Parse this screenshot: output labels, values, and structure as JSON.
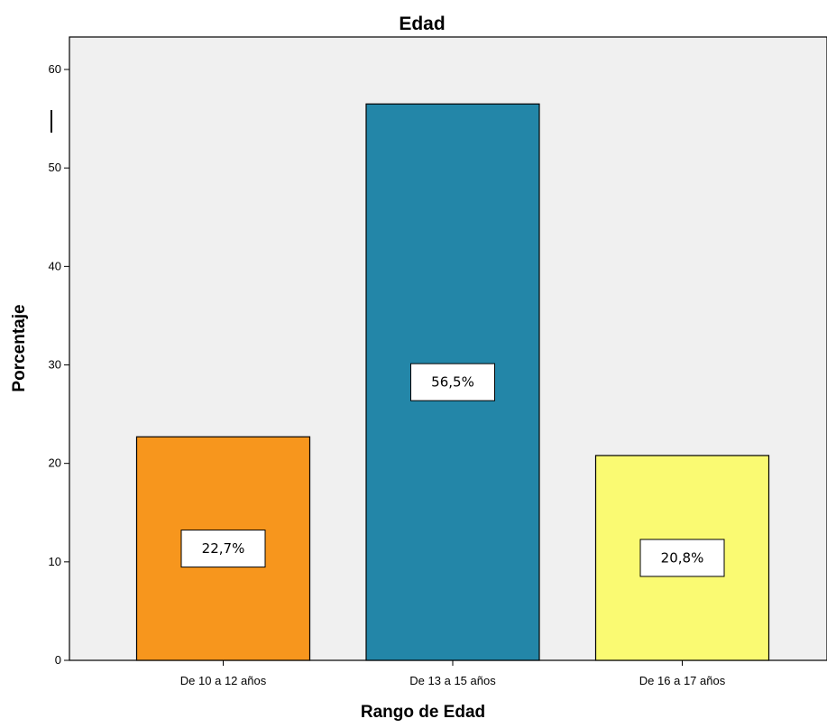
{
  "chart_data": {
    "type": "bar",
    "title": "Edad",
    "xlabel": "Rango  de Edad",
    "ylabel": "Porcentaje",
    "categories": [
      "De 10 a 12 años",
      "De 13 a 15 años",
      "De 16 a 17 años"
    ],
    "values": [
      22.7,
      56.5,
      20.8
    ],
    "data_labels": [
      "22,7%",
      "56,5%",
      "20,8%"
    ],
    "colors": [
      "#f7961d",
      "#2386a8",
      "#fafa72"
    ],
    "yticks": [
      0,
      10,
      20,
      30,
      40,
      50,
      60
    ],
    "ylim": [
      0,
      63.3
    ],
    "grid": false,
    "background": "#f0f0f0"
  }
}
